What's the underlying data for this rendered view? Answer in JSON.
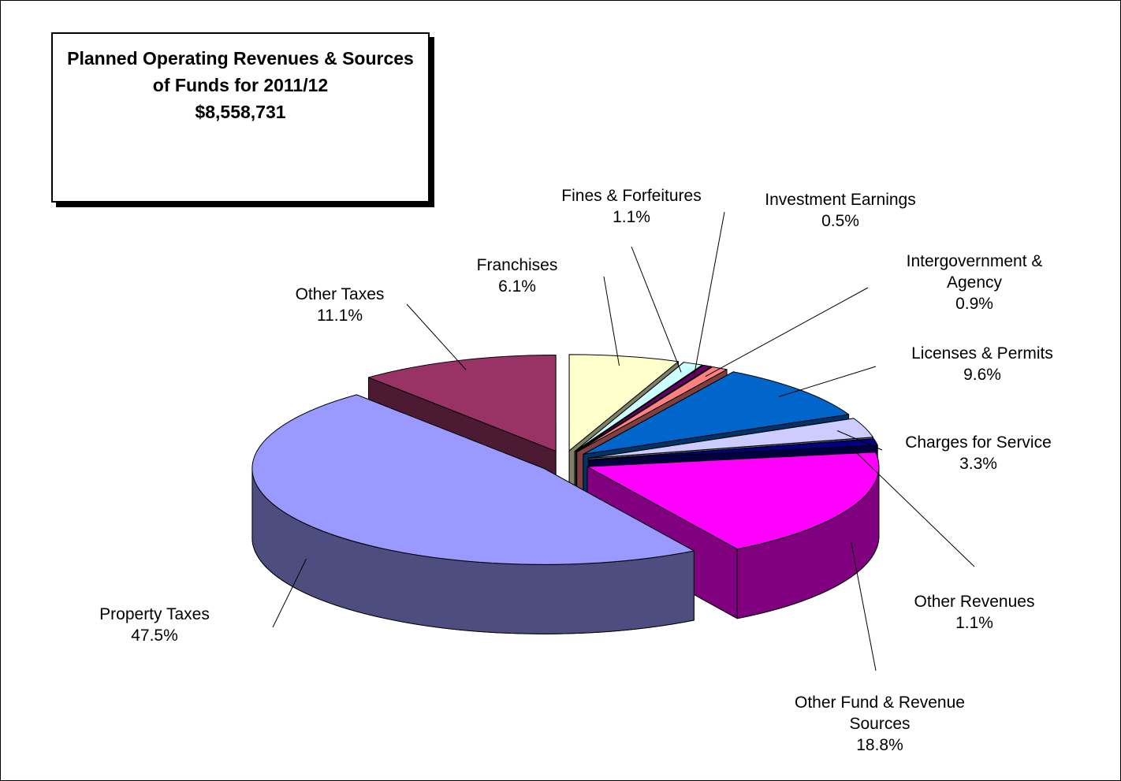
{
  "chart_data": {
    "type": "pie",
    "title": "Planned Operating Revenues & Sources of Funds for 2011/12",
    "subtitle": "$8,558,731",
    "categories": [
      "Franchises",
      "Fines & Forfeitures",
      "Investment Earnings",
      "Intergovernment & Agency",
      "Licenses & Permits",
      "Charges for Service",
      "Other Revenues",
      "Other Fund & Revenue Sources",
      "Property Taxes",
      "Other Taxes"
    ],
    "values": [
      6.1,
      1.1,
      0.5,
      0.9,
      9.6,
      3.3,
      1.1,
      18.8,
      47.5,
      11.1
    ],
    "value_labels": [
      "6.1%",
      "1.1%",
      "0.5%",
      "0.9%",
      "9.6%",
      "3.3%",
      "1.1%",
      "18.8%",
      "47.5%",
      "11.1%"
    ],
    "colors": [
      "#ffffcc",
      "#ccffff",
      "#660066",
      "#ff8080",
      "#0066cc",
      "#ccccff",
      "#000080",
      "#ff00ff",
      "#9999ff",
      "#993366"
    ]
  }
}
